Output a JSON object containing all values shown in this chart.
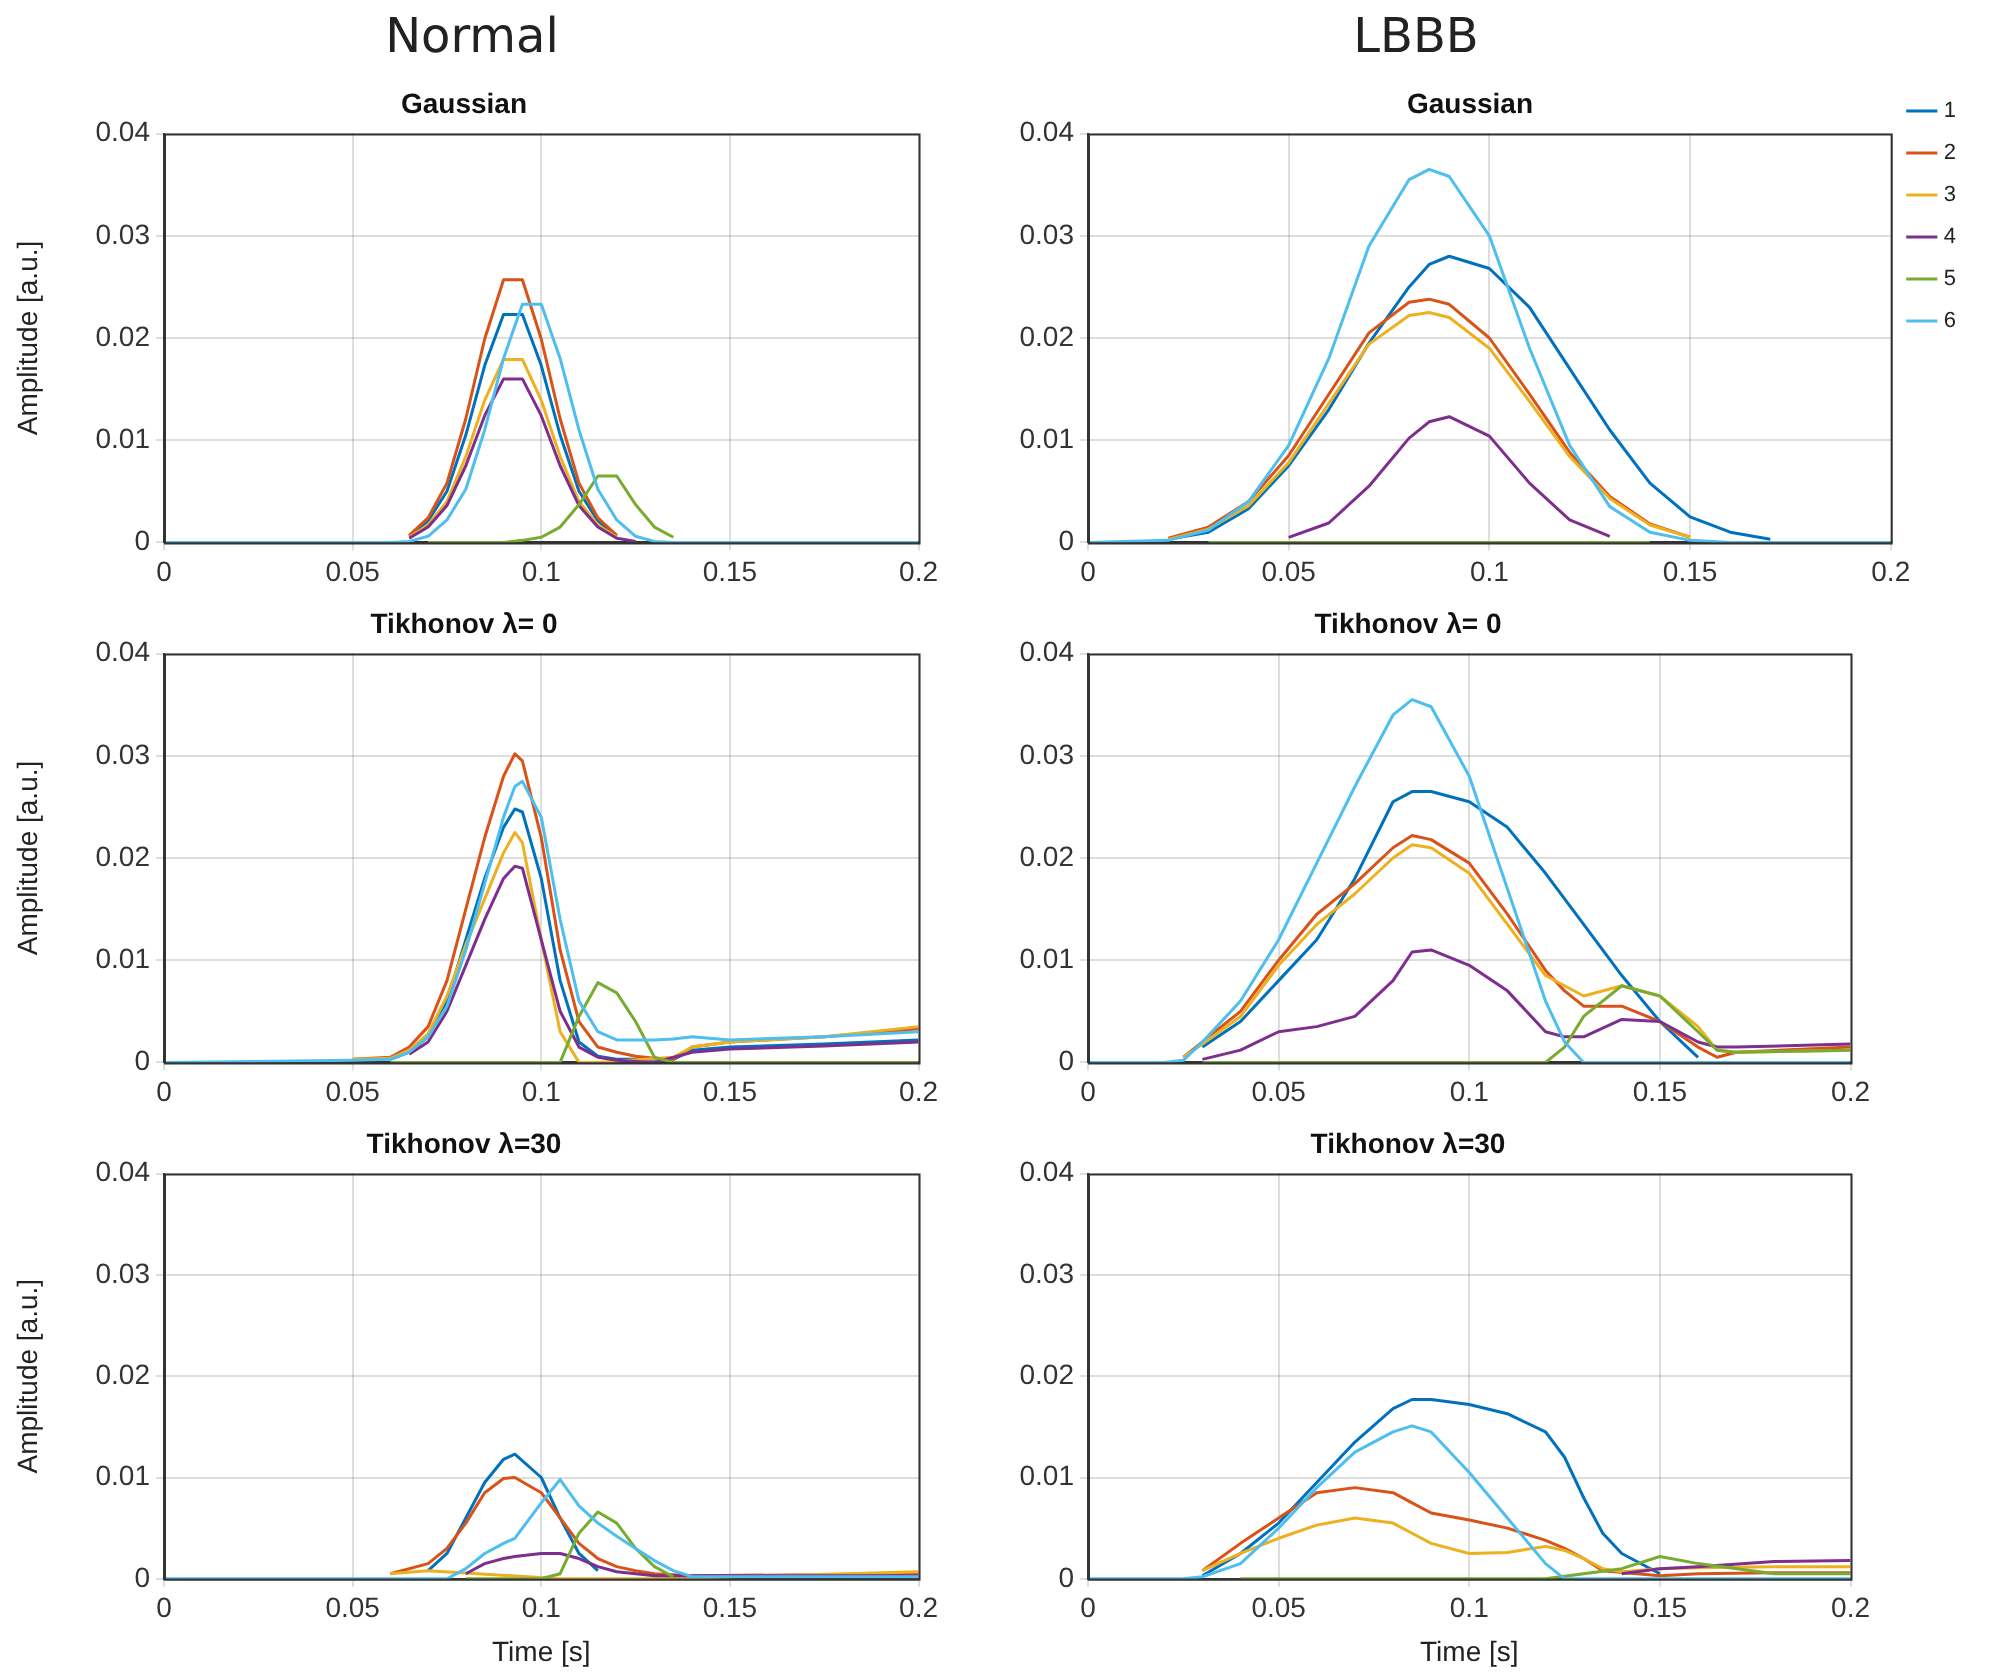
{
  "chart_data": [
    {
      "type": "line",
      "title": "Gaussian",
      "ylabel": "Amplitude [a.u.]",
      "annotations": [
        "Normal"
      ],
      "xlim": [
        0,
        0.2
      ],
      "ylim": [
        0,
        0.04
      ],
      "xticks": [
        0,
        0.05,
        0.1,
        0.15,
        0.2
      ],
      "yticks": [
        0,
        0.01,
        0.02,
        0.03,
        0.04
      ],
      "grid": true,
      "x": [
        0,
        0.05,
        0.06,
        0.065,
        0.07,
        0.075,
        0.08,
        0.085,
        0.09,
        0.095,
        0.1,
        0.105,
        0.11,
        0.115,
        0.12,
        0.125,
        0.13,
        0.135,
        0.14,
        0.15,
        0.2
      ],
      "series": [
        {
          "color": "#0072bd",
          "values": [
            null,
            null,
            null,
            0.0006,
            0.0021,
            0.005,
            0.0105,
            0.0173,
            0.0223,
            0.0223,
            0.0173,
            0.0105,
            0.005,
            0.0021,
            0.0006,
            null,
            null,
            null,
            null,
            null,
            null
          ]
        },
        {
          "color": "#d95319",
          "values": [
            null,
            null,
            null,
            0.0007,
            0.0024,
            0.0058,
            0.0121,
            0.0199,
            0.0257,
            0.0257,
            0.0199,
            0.0121,
            0.0058,
            0.0024,
            0.0007,
            null,
            null,
            null,
            null,
            null,
            null
          ]
        },
        {
          "color": "#edb120",
          "values": [
            null,
            null,
            null,
            0.0005,
            0.0017,
            0.004,
            0.0084,
            0.0139,
            0.0179,
            0.0179,
            0.0139,
            0.0084,
            0.004,
            0.0017,
            0.0005,
            null,
            null,
            null,
            null,
            null,
            null
          ]
        },
        {
          "color": "#7e2f8e",
          "values": [
            null,
            null,
            null,
            0.0004,
            0.0015,
            0.0036,
            0.0075,
            0.0124,
            0.016,
            0.016,
            0.0124,
            0.0075,
            0.0036,
            0.0015,
            0.0004,
            0.0001,
            null,
            null,
            null,
            null,
            null
          ]
        },
        {
          "color": "#77ac30",
          "values": [
            null,
            null,
            null,
            null,
            0,
            0,
            0,
            0,
            0,
            0.0002,
            0.0005,
            0.0015,
            0.0037,
            0.0065,
            0.0065,
            0.0037,
            0.0015,
            0.0005,
            null,
            null,
            null
          ]
        },
        {
          "color": "#4dbeee",
          "values": [
            0,
            0,
            0,
            0.0001,
            0.0006,
            0.0022,
            0.0052,
            0.011,
            0.018,
            0.0233,
            0.0233,
            0.018,
            0.011,
            0.0052,
            0.0022,
            0.0006,
            0.0001,
            0,
            0,
            0,
            0
          ]
        }
      ]
    },
    {
      "type": "line",
      "title": "Gaussian",
      "annotations": [
        "LBBB"
      ],
      "legend": "right",
      "xlim": [
        0,
        0.2
      ],
      "ylim": [
        0,
        0.04
      ],
      "xticks": [
        0,
        0.05,
        0.1,
        0.15,
        0.2
      ],
      "yticks": [
        0,
        0.01,
        0.02,
        0.03,
        0.04
      ],
      "grid": true,
      "x": [
        0,
        0.02,
        0.03,
        0.04,
        0.05,
        0.06,
        0.07,
        0.08,
        0.085,
        0.09,
        0.1,
        0.11,
        0.12,
        0.13,
        0.14,
        0.15,
        0.16,
        0.17,
        0.18,
        0.2
      ],
      "series": [
        {
          "name": "1",
          "color": "#0072bd",
          "values": [
            null,
            0.0003,
            0.001,
            0.0033,
            0.0075,
            0.013,
            0.0195,
            0.025,
            0.0272,
            0.028,
            0.0268,
            0.023,
            0.017,
            0.011,
            0.0058,
            0.0025,
            0.001,
            0.0003,
            null,
            null
          ]
        },
        {
          "name": "2",
          "color": "#d95319",
          "values": [
            null,
            0.0004,
            0.0015,
            0.004,
            0.0085,
            0.0145,
            0.0205,
            0.0235,
            0.0238,
            0.0233,
            0.02,
            0.0145,
            0.0088,
            0.0045,
            0.0018,
            0.0005,
            null,
            null,
            null,
            null
          ]
        },
        {
          "name": "3",
          "color": "#edb120",
          "values": [
            null,
            0.0003,
            0.0013,
            0.0036,
            0.0078,
            0.0136,
            0.0194,
            0.0222,
            0.0225,
            0.022,
            0.019,
            0.0138,
            0.0084,
            0.0043,
            0.0017,
            0.0005,
            null,
            null,
            null,
            null
          ]
        },
        {
          "name": "4",
          "color": "#7e2f8e",
          "values": [
            null,
            null,
            null,
            null,
            0.0005,
            0.0019,
            0.0055,
            0.0102,
            0.0118,
            0.0123,
            0.0104,
            0.0058,
            0.0022,
            0.0006,
            null,
            null,
            null,
            null,
            null,
            null
          ]
        },
        {
          "name": "5",
          "color": "#77ac30",
          "values": [
            null,
            null,
            0,
            0,
            0,
            0,
            0,
            0,
            0,
            0,
            0,
            0,
            0,
            0,
            0,
            null,
            null,
            null,
            null,
            null
          ]
        },
        {
          "name": "6",
          "color": "#4dbeee",
          "values": [
            0,
            0.0002,
            0.0012,
            0.004,
            0.0095,
            0.018,
            0.029,
            0.0355,
            0.0365,
            0.0358,
            0.03,
            0.019,
            0.0095,
            0.0035,
            0.001,
            0.0002,
            0,
            0,
            0,
            0
          ]
        }
      ]
    },
    {
      "type": "line",
      "title": "Tikhonov λ= 0",
      "ylabel": "Amplitude [a.u.]",
      "xlim": [
        0,
        0.2
      ],
      "ylim": [
        0,
        0.04
      ],
      "xticks": [
        0,
        0.05,
        0.1,
        0.15,
        0.2
      ],
      "yticks": [
        0,
        0.01,
        0.02,
        0.03,
        0.04
      ],
      "grid": true,
      "x": [
        0,
        0.05,
        0.06,
        0.065,
        0.07,
        0.075,
        0.08,
        0.085,
        0.09,
        0.093,
        0.095,
        0.1,
        0.105,
        0.11,
        0.115,
        0.12,
        0.125,
        0.13,
        0.135,
        0.14,
        0.15,
        0.175,
        0.2
      ],
      "series": [
        {
          "color": "#0072bd",
          "values": [
            null,
            null,
            0.0003,
            0.001,
            0.0025,
            0.006,
            0.012,
            0.018,
            0.023,
            0.0248,
            0.0245,
            0.018,
            0.008,
            0.002,
            0.0006,
            0.0003,
            null,
            null,
            0.0003,
            0.0012,
            0.0015,
            0.0018,
            0.0022
          ]
        },
        {
          "color": "#d95319",
          "values": [
            null,
            0.0003,
            0.0005,
            0.0015,
            0.0035,
            0.008,
            0.015,
            0.022,
            0.028,
            0.0302,
            0.0295,
            0.022,
            0.011,
            0.004,
            0.0015,
            0.001,
            0.0006,
            0.0004,
            0.0003,
            0.0015,
            0.002,
            0.0025,
            0.0033
          ]
        },
        {
          "color": "#edb120",
          "values": [
            null,
            0.0003,
            0.0004,
            0.0012,
            0.0028,
            0.0065,
            0.0115,
            0.016,
            0.0205,
            0.0225,
            0.0215,
            0.012,
            0.003,
            0,
            0,
            null,
            null,
            null,
            0.0005,
            0.0015,
            0.002,
            0.0025,
            0.0035
          ]
        },
        {
          "color": "#7e2f8e",
          "values": [
            null,
            null,
            null,
            0.0008,
            0.002,
            0.005,
            0.0095,
            0.014,
            0.018,
            0.0192,
            0.019,
            0.012,
            0.005,
            0.0015,
            0.0005,
            0.0002,
            0.0001,
            0,
            null,
            0.001,
            0.0013,
            0.0016,
            0.002
          ]
        },
        {
          "color": "#77ac30",
          "values": [
            null,
            null,
            0,
            0,
            0,
            0,
            0,
            0,
            0,
            0,
            0,
            0,
            0,
            0.0045,
            0.0078,
            0.0068,
            0.004,
            0.0005,
            0,
            0,
            0,
            0,
            0
          ]
        },
        {
          "color": "#4dbeee",
          "values": [
            0,
            0.0002,
            0.0003,
            0.001,
            0.0025,
            0.0055,
            0.011,
            0.0175,
            0.024,
            0.027,
            0.0275,
            0.024,
            0.014,
            0.006,
            0.003,
            0.0022,
            0.0022,
            0.0022,
            0.0023,
            0.0025,
            0.0022,
            0.0025,
            0.003
          ]
        }
      ]
    },
    {
      "type": "line",
      "title": "Tikhonov λ= 0",
      "xlim": [
        0,
        0.2
      ],
      "ylim": [
        0,
        0.04
      ],
      "xticks": [
        0,
        0.05,
        0.1,
        0.15,
        0.2
      ],
      "yticks": [
        0,
        0.01,
        0.02,
        0.03,
        0.04
      ],
      "grid": true,
      "x": [
        0,
        0.02,
        0.025,
        0.03,
        0.04,
        0.05,
        0.06,
        0.07,
        0.08,
        0.085,
        0.09,
        0.1,
        0.11,
        0.12,
        0.125,
        0.13,
        0.14,
        0.15,
        0.16,
        0.165,
        0.17,
        0.2
      ],
      "series": [
        {
          "color": "#0072bd",
          "values": [
            null,
            null,
            null,
            0.0015,
            0.004,
            0.008,
            0.012,
            0.018,
            0.0255,
            0.0265,
            0.0265,
            0.0255,
            0.023,
            0.0185,
            0.016,
            0.0135,
            0.0085,
            0.004,
            0.0005,
            null,
            null,
            null
          ]
        },
        {
          "color": "#d95319",
          "values": [
            null,
            null,
            0.0005,
            0.002,
            0.005,
            0.01,
            0.0145,
            0.0175,
            0.021,
            0.0222,
            0.0218,
            0.0195,
            0.0145,
            0.009,
            0.007,
            0.0055,
            0.0055,
            0.004,
            0.0015,
            0.0005,
            0.001,
            0.0015
          ]
        },
        {
          "color": "#edb120",
          "values": [
            null,
            null,
            0.0005,
            0.0018,
            0.0045,
            0.0095,
            0.0135,
            0.0165,
            0.02,
            0.0213,
            0.021,
            0.0185,
            0.0135,
            0.0085,
            0.0075,
            0.0065,
            0.0075,
            0.0065,
            0.0035,
            0.0012,
            0.001,
            0.0012
          ]
        },
        {
          "color": "#7e2f8e",
          "values": [
            null,
            null,
            null,
            0.0003,
            0.0012,
            0.003,
            0.0035,
            0.0045,
            0.008,
            0.0108,
            0.011,
            0.0095,
            0.007,
            0.003,
            0.0025,
            0.0025,
            0.0042,
            0.004,
            0.002,
            0.0015,
            0.0015,
            0.0018
          ]
        },
        {
          "color": "#77ac30",
          "values": [
            null,
            null,
            null,
            0,
            0,
            0,
            0,
            0,
            0,
            0,
            0,
            0,
            0,
            0,
            0.0015,
            0.0045,
            0.0075,
            0.0065,
            0.003,
            0.0012,
            0.001,
            0.0012
          ]
        },
        {
          "color": "#4dbeee",
          "values": [
            0,
            0,
            0.0002,
            0.002,
            0.006,
            0.012,
            0.0195,
            0.027,
            0.034,
            0.0355,
            0.0348,
            0.028,
            0.017,
            0.006,
            0.002,
            0,
            0,
            0,
            0,
            0,
            0,
            0
          ]
        }
      ]
    },
    {
      "type": "line",
      "title": "Tikhonov λ=30",
      "xlabel": "Time [s]",
      "ylabel": "Amplitude [a.u.]",
      "xlim": [
        0,
        0.2
      ],
      "ylim": [
        0,
        0.04
      ],
      "xticks": [
        0,
        0.05,
        0.1,
        0.15,
        0.2
      ],
      "yticks": [
        0,
        0.01,
        0.02,
        0.03,
        0.04
      ],
      "grid": true,
      "x": [
        0,
        0.05,
        0.06,
        0.07,
        0.075,
        0.08,
        0.085,
        0.09,
        0.093,
        0.1,
        0.105,
        0.11,
        0.115,
        0.12,
        0.125,
        0.13,
        0.135,
        0.14,
        0.15,
        0.2
      ],
      "series": [
        {
          "color": "#0072bd",
          "values": [
            null,
            null,
            null,
            0.0008,
            0.0025,
            0.006,
            0.0095,
            0.0118,
            0.0123,
            0.01,
            0.006,
            0.0025,
            0.0008,
            null,
            null,
            null,
            null,
            null,
            null,
            null
          ]
        },
        {
          "color": "#d95319",
          "values": [
            null,
            null,
            0.0005,
            0.0015,
            0.003,
            0.0055,
            0.0085,
            0.0099,
            0.01,
            0.0085,
            0.006,
            0.0035,
            0.002,
            0.0012,
            0.0008,
            0.0005,
            0.0004,
            0.0003,
            null,
            0.0005
          ]
        },
        {
          "color": "#edb120",
          "values": [
            null,
            null,
            0.0005,
            0.0008,
            null,
            null,
            null,
            null,
            null,
            null,
            0,
            0,
            0,
            0,
            0,
            0,
            null,
            null,
            null,
            0.0007
          ]
        },
        {
          "color": "#7e2f8e",
          "values": [
            null,
            null,
            null,
            null,
            null,
            0.0005,
            0.0015,
            0.002,
            0.0022,
            0.0025,
            0.0025,
            0.002,
            0.0012,
            0.0007,
            0.0005,
            0.0003,
            null,
            null,
            null,
            0.0003
          ]
        },
        {
          "color": "#77ac30",
          "values": [
            null,
            null,
            null,
            null,
            null,
            0,
            0,
            0,
            0,
            0,
            0.0005,
            0.0045,
            0.0066,
            0.0055,
            0.003,
            0.0012,
            0.0002,
            null,
            null,
            null
          ]
        },
        {
          "color": "#4dbeee",
          "values": [
            0,
            0,
            0,
            0,
            0,
            0.001,
            0.0025,
            0.0035,
            0.004,
            0.0075,
            0.0098,
            0.0072,
            0.0055,
            0.0042,
            0.003,
            0.0018,
            0.0008,
            0.0002,
            0.0002,
            0.0002
          ]
        }
      ]
    },
    {
      "type": "line",
      "title": "Tikhonov λ=30",
      "xlabel": "Time [s]",
      "xlim": [
        0,
        0.2
      ],
      "ylim": [
        0,
        0.04
      ],
      "xticks": [
        0,
        0.05,
        0.1,
        0.15,
        0.2
      ],
      "yticks": [
        0,
        0.01,
        0.02,
        0.03,
        0.04
      ],
      "grid": true,
      "x": [
        0,
        0.025,
        0.03,
        0.04,
        0.05,
        0.06,
        0.07,
        0.08,
        0.085,
        0.09,
        0.1,
        0.11,
        0.12,
        0.125,
        0.13,
        0.135,
        0.14,
        0.15,
        0.16,
        0.18,
        0.2
      ],
      "series": [
        {
          "color": "#0072bd",
          "values": [
            null,
            null,
            0.0003,
            0.0025,
            0.0055,
            0.0095,
            0.0135,
            0.0168,
            0.0177,
            0.0177,
            0.0172,
            0.0163,
            0.0145,
            0.012,
            0.008,
            0.0045,
            0.0025,
            0.0005,
            null,
            null,
            null
          ]
        },
        {
          "color": "#d95319",
          "values": [
            null,
            null,
            0.0008,
            0.0035,
            0.006,
            0.0085,
            0.009,
            0.0085,
            0.0075,
            0.0065,
            0.0058,
            0.005,
            0.0038,
            0.003,
            0.002,
            0.0008,
            null,
            0.0003,
            0.0005,
            0.0006,
            0.0006
          ]
        },
        {
          "color": "#edb120",
          "values": [
            null,
            null,
            0.0008,
            0.0025,
            0.004,
            0.0053,
            0.006,
            0.0055,
            0.0045,
            0.0035,
            0.0025,
            0.0026,
            0.0032,
            0.0028,
            0.002,
            0.001,
            0.0007,
            0.001,
            0.0011,
            0.0012,
            0.0012
          ]
        },
        {
          "color": "#7e2f8e",
          "values": [
            null,
            null,
            null,
            null,
            null,
            null,
            null,
            null,
            null,
            null,
            null,
            null,
            null,
            null,
            null,
            null,
            0.0005,
            0.001,
            0.0012,
            0.0017,
            0.0018
          ]
        },
        {
          "color": "#77ac30",
          "values": [
            null,
            null,
            null,
            0,
            0,
            0,
            0,
            0,
            0,
            0,
            0,
            0,
            0,
            null,
            null,
            null,
            0.001,
            0.0022,
            0.0015,
            0.0005,
            0.0005
          ]
        },
        {
          "color": "#4dbeee",
          "values": [
            0,
            0,
            0.0002,
            0.0015,
            0.005,
            0.009,
            0.0125,
            0.0145,
            0.0151,
            0.0145,
            0.0105,
            0.006,
            0.0015,
            0,
            0,
            0,
            0,
            0,
            0,
            0,
            0
          ]
        }
      ]
    }
  ]
}
